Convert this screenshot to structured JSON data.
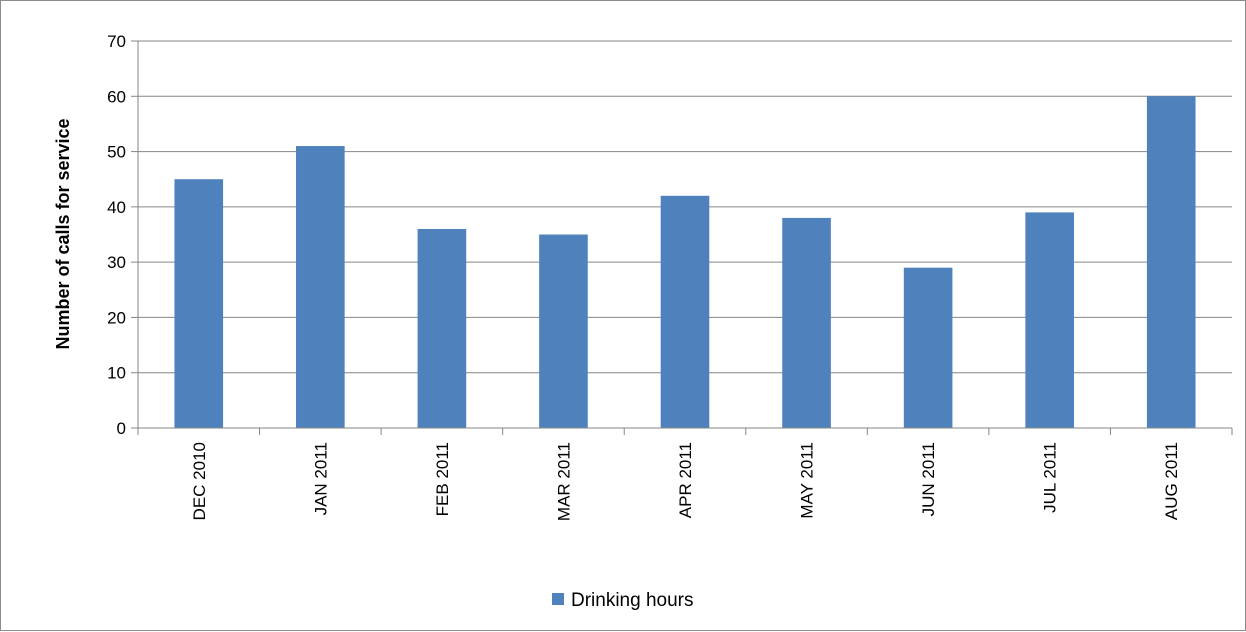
{
  "chart_data": {
    "type": "bar",
    "categories": [
      "DEC 2010",
      "JAN 2011",
      "FEB 2011",
      "MAR 2011",
      "APR 2011",
      "MAY 2011",
      "JUN 2011",
      "JUL 2011",
      "AUG 2011"
    ],
    "series": [
      {
        "name": "Drinking hours",
        "values": [
          45,
          51,
          36,
          35,
          42,
          38,
          29,
          39,
          60
        ]
      }
    ],
    "title": "",
    "xlabel": "",
    "ylabel": "Number of calls for service",
    "ylim": [
      0,
      70
    ],
    "yticks": [
      "0",
      "10",
      "20",
      "30",
      "40",
      "50",
      "60",
      "70"
    ],
    "grid": true,
    "legend_position": "bottom",
    "colors": {
      "bar": "#4f81bd",
      "grid": "#868686",
      "axis": "#868686"
    }
  }
}
